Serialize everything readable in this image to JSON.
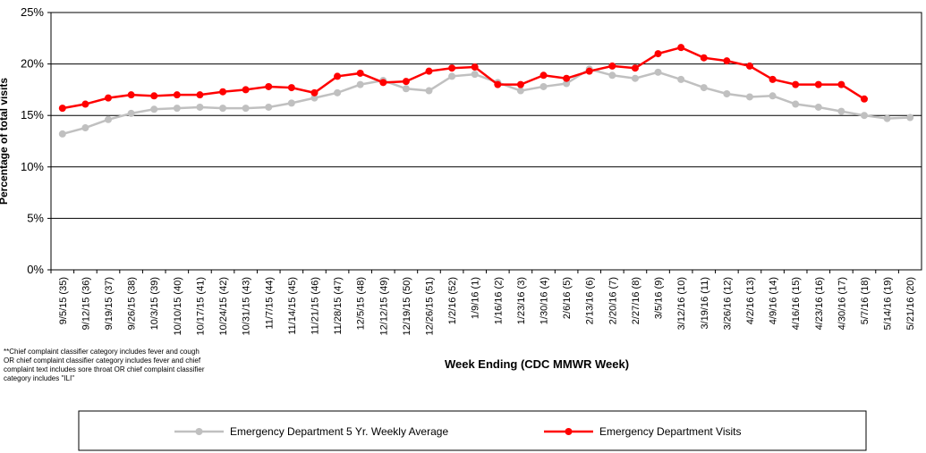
{
  "chart_data": {
    "type": "line",
    "y_label": "Percentage of total visits",
    "x_label": "Week Ending (CDC MMWR Week)",
    "footnote": [
      "**Chief complaint classifier category includes fever and cough",
      "OR chief complaint classifier category includes fever and chief",
      "complaint text includes sore throat OR chief complaint classifier",
      "category includes \"ILI\""
    ],
    "categories": [
      "9/5/15 (35)",
      "9/12/15 (36)",
      "9/19/15 (37)",
      "9/26/15 (38)",
      "10/3/15 (39)",
      "10/10/15 (40)",
      "10/17/15 (41)",
      "10/24/15 (42)",
      "10/31/15 (43)",
      "11/7/15 (44)",
      "11/14/15 (45)",
      "11/21/15 (46)",
      "11/28/15 (47)",
      "12/5/15 (48)",
      "12/12/15 (49)",
      "12/19/15 (50)",
      "12/26/15 (51)",
      "1/2/16 (52)",
      "1/9/16 (1)",
      "1/16/16 (2)",
      "1/23/16 (3)",
      "1/30/16 (4)",
      "2/6/16 (5)",
      "2/13/16 (6)",
      "2/20/16 (7)",
      "2/27/16 (8)",
      "3/5/16 (9)",
      "3/12/16 (10)",
      "3/19/16 (11)",
      "3/26/16 (12)",
      "4/2/16 (13)",
      "4/9/16 (14)",
      "4/16/16 (15)",
      "4/23/16 (16)",
      "4/30/16 (17)",
      "5/7/16 (18)",
      "5/14/16 (19)",
      "5/21/16 (20)"
    ],
    "series": [
      {
        "name": "Emergency Department 5 Yr. Weekly Average",
        "color": "#c0c0c0",
        "values": [
          13.2,
          13.8,
          14.6,
          15.2,
          15.6,
          15.7,
          15.8,
          15.7,
          15.7,
          15.8,
          16.2,
          16.7,
          17.2,
          18.0,
          18.4,
          17.6,
          17.4,
          18.8,
          19.0,
          18.2,
          17.4,
          17.8,
          18.1,
          19.5,
          18.9,
          18.6,
          19.2,
          18.5,
          17.7,
          17.1,
          16.8,
          16.9,
          16.1,
          15.8,
          15.4,
          15.0,
          14.7,
          14.8
        ]
      },
      {
        "name": "Emergency Department Visits",
        "color": "#ff0000",
        "values": [
          15.7,
          16.1,
          16.7,
          17.0,
          16.9,
          17.0,
          17.0,
          17.3,
          17.5,
          17.8,
          17.7,
          17.2,
          18.8,
          19.1,
          18.2,
          18.3,
          19.3,
          19.6,
          19.7,
          18.0,
          18.0,
          18.9,
          18.6,
          19.3,
          19.8,
          19.6,
          21.0,
          21.6,
          20.6,
          20.3,
          19.8,
          18.5,
          18.0,
          18.0,
          18.0,
          16.6,
          null,
          null
        ]
      }
    ],
    "ylim": [
      0,
      25
    ],
    "yticks": [
      {
        "value": 0,
        "label": "0%"
      },
      {
        "value": 5,
        "label": "5%"
      },
      {
        "value": 10,
        "label": "10%"
      },
      {
        "value": 15,
        "label": "15%"
      },
      {
        "value": 20,
        "label": "20%"
      },
      {
        "value": 25,
        "label": "25%"
      }
    ],
    "grid": true
  }
}
